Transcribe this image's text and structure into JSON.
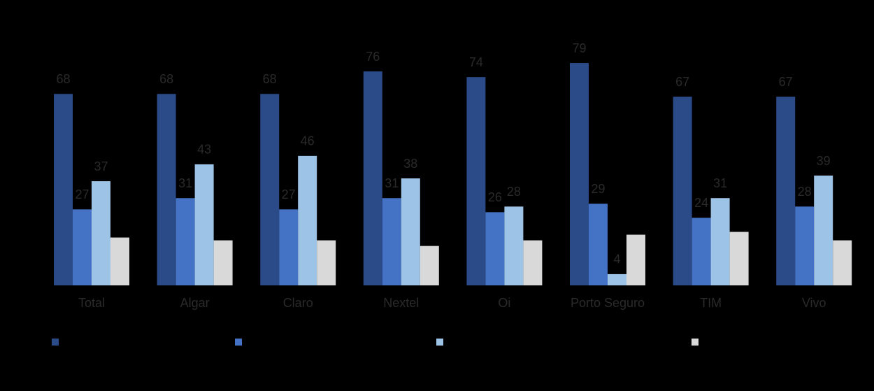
{
  "chart_data": {
    "type": "bar",
    "categories": [
      "Total",
      "Algar",
      "Claro",
      "Nextel",
      "Oi",
      "Porto Seguro",
      "TIM",
      "Vivo"
    ],
    "series": [
      {
        "color": "#2b4a88",
        "values": [
          68,
          68,
          68,
          76,
          74,
          79,
          67,
          67
        ]
      },
      {
        "color": "#4472c4",
        "values": [
          27,
          31,
          27,
          31,
          26,
          29,
          24,
          28
        ]
      },
      {
        "color": "#9dc3e6",
        "values": [
          37,
          43,
          46,
          38,
          28,
          4,
          31,
          39
        ]
      },
      {
        "color": "#d9d9d9",
        "values": [
          17,
          16,
          16,
          14,
          16,
          18,
          19,
          16
        ]
      }
    ],
    "value_labels_series": [
      0,
      1,
      2
    ],
    "ylim": [
      0,
      80
    ]
  }
}
